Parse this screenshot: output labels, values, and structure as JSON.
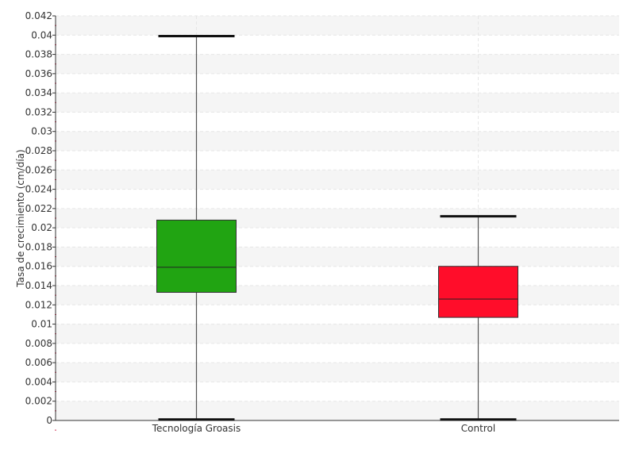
{
  "chart_data": {
    "type": "box",
    "ylabel": "Tasa de crecimiento (cm/día)",
    "xlabel": "",
    "ylim": [
      0,
      0.042
    ],
    "ytick_step": 0.002,
    "y_ticks": [
      "0",
      "0.002",
      "0.004",
      "0.006",
      "0.008",
      "0.01",
      "0.012",
      "0.014",
      "0.016",
      "0.018",
      "0.02",
      "0.022",
      "0.024",
      "0.026",
      "0.028",
      "0.03",
      "0.032",
      "0.034",
      "0.036",
      "0.038",
      "0.04",
      "0.042"
    ],
    "grid": true,
    "categories": [
      "Tecnología Groasis",
      "Control"
    ],
    "boxes": [
      {
        "category": "Tecnología Groasis",
        "min": 0.0001,
        "q1": 0.0133,
        "median": 0.0159,
        "q3": 0.0208,
        "max": 0.0399,
        "color": "#21a412"
      },
      {
        "category": "Control",
        "min": 0.0001,
        "q1": 0.0107,
        "median": 0.0126,
        "q3": 0.016,
        "max": 0.0212,
        "color": "#ff0d2a"
      }
    ]
  }
}
